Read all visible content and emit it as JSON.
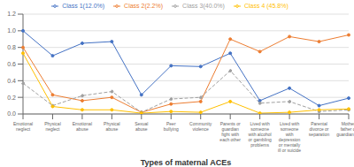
{
  "chart_data": {
    "type": "line",
    "xlabel": "Types of maternal ACEs",
    "categories": [
      "Emotional\nneglect",
      "Physical\nneglect",
      "Emotional\nabuse",
      "Physical\nabuse",
      "Sexual\nabuse",
      "Peer\nbullying",
      "Community\nviolence",
      "Parents or\nguardian\nfight with\neach other",
      "Lived with\nsomeone\nwith alcohol\nor gambling\nproblems",
      "Lived with\nsomeone\nwith\ndepression\nor mentally\nill or suicide",
      "Parental\ndivorce or\nseparation",
      "Mother,\nfather or\nguardian die"
    ],
    "series": [
      {
        "name": "Class 1(12.0%)",
        "color": "#4472C4",
        "line_style": "solid",
        "marker": "circle",
        "values": [
          1.0,
          0.7,
          0.85,
          0.87,
          0.23,
          0.58,
          0.57,
          0.73,
          0.16,
          0.31,
          0.1,
          0.19
        ]
      },
      {
        "name": "Class 2(2.2%)",
        "color": "#ED7D31",
        "line_style": "solid",
        "marker": "circle",
        "values": [
          0.8,
          0.23,
          0.16,
          0.2,
          0.02,
          0.12,
          0.15,
          0.9,
          0.75,
          0.93,
          0.87,
          0.95
        ]
      },
      {
        "name": "Class 3(40.0%)",
        "color": "#A0A0A0",
        "line_style": "dashed",
        "marker": "circle",
        "values": [
          0.37,
          0.1,
          0.22,
          0.27,
          0.02,
          0.18,
          0.2,
          0.52,
          0.13,
          0.15,
          0.03,
          0.05
        ]
      },
      {
        "name": "Class 4 (45.8%)",
        "color": "#FFC000",
        "line_style": "solid",
        "marker": "circle",
        "values": [
          0.73,
          0.09,
          0.05,
          0.05,
          0.01,
          0.03,
          0.02,
          0.15,
          0.01,
          0.02,
          0.05,
          0.06
        ]
      }
    ],
    "ylim": [
      0.0,
      1.2
    ],
    "yticks": [
      {
        "value": 0,
        "label": "0.0"
      },
      0.2,
      0.4,
      0.6,
      0.8,
      {
        "value": 1,
        "label": "1.0"
      },
      1.2
    ],
    "grid": true,
    "legend": "top"
  }
}
